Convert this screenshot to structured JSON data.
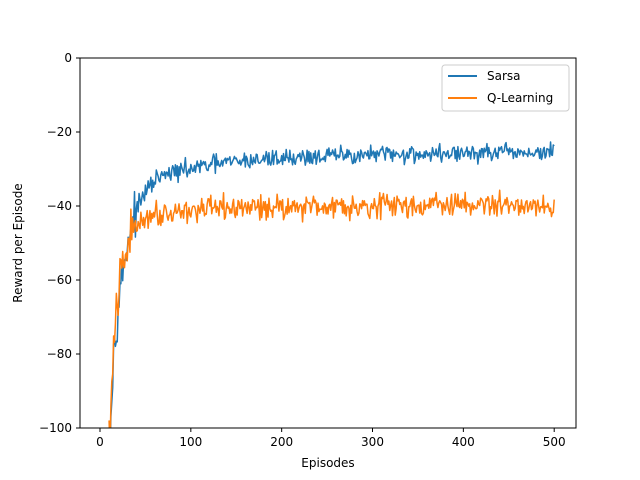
{
  "chart_data": {
    "type": "line",
    "xlabel": "Episodes",
    "ylabel": "Reward per Episode",
    "xlim": [
      -22,
      524
    ],
    "ylim": [
      -100,
      0
    ],
    "xticks": [
      0,
      100,
      200,
      300,
      400,
      500
    ],
    "yticks": [
      -100,
      -80,
      -60,
      -40,
      -20,
      0
    ],
    "xtick_labels": [
      "0",
      "100",
      "200",
      "300",
      "400",
      "500"
    ],
    "ytick_labels": [
      "−100",
      "−80",
      "−60",
      "−40",
      "−20",
      "0"
    ],
    "legend_position": "top-right",
    "grid": false,
    "series": [
      {
        "name": "Sarsa",
        "color": "#1f77b4",
        "x": [
          10,
          12,
          14,
          16,
          18,
          20,
          22,
          25,
          28,
          30,
          33,
          36,
          40,
          45,
          50,
          55,
          60,
          70,
          80,
          90,
          100,
          110,
          120,
          130,
          140,
          150,
          160,
          170,
          180,
          190,
          200,
          210,
          220,
          230,
          240,
          250,
          260,
          270,
          280,
          290,
          300,
          310,
          320,
          330,
          340,
          350,
          360,
          370,
          380,
          390,
          400,
          410,
          420,
          430,
          440,
          450,
          460,
          470,
          480,
          490,
          500
        ],
        "y": [
          -105,
          -97,
          -85,
          -76,
          -72,
          -66,
          -62,
          -58,
          -54,
          -50,
          -47,
          -44,
          -41,
          -39,
          -36,
          -35,
          -33,
          -32,
          -31,
          -30.5,
          -30,
          -29.5,
          -29,
          -28.5,
          -28.3,
          -28,
          -27.8,
          -27.6,
          -27.4,
          -27.2,
          -27,
          -26.9,
          -26.8,
          -26.7,
          -26.6,
          -26.5,
          -26.4,
          -26.3,
          -26.3,
          -26.2,
          -26.2,
          -26.1,
          -26.1,
          -26,
          -26,
          -26,
          -25.9,
          -25.9,
          -25.9,
          -25.8,
          -25.8,
          -25.8,
          -25.8,
          -25.7,
          -25.7,
          -25.7,
          -25.7,
          -25.6,
          -25.6,
          -25.6,
          -25.6
        ],
        "noise": 1.2
      },
      {
        "name": "Q-Learning",
        "color": "#ff7f0e",
        "x": [
          10,
          12,
          14,
          16,
          18,
          20,
          22,
          25,
          28,
          30,
          33,
          36,
          40,
          45,
          50,
          55,
          60,
          70,
          80,
          90,
          100,
          110,
          120,
          130,
          140,
          150,
          160,
          170,
          180,
          190,
          200,
          210,
          220,
          230,
          240,
          250,
          260,
          270,
          280,
          290,
          300,
          310,
          320,
          330,
          340,
          350,
          360,
          370,
          380,
          390,
          400,
          410,
          420,
          430,
          440,
          450,
          460,
          470,
          480,
          490,
          500
        ],
        "y": [
          -103,
          -95,
          -84,
          -76,
          -70,
          -64,
          -60,
          -57,
          -54,
          -51,
          -49,
          -47,
          -45.5,
          -44,
          -43,
          -42.5,
          -42,
          -41.8,
          -41.5,
          -41.3,
          -41.1,
          -41,
          -40.9,
          -40.8,
          -40.7,
          -40.6,
          -40.5,
          -40.4,
          -40.3,
          -40.2,
          -40.2,
          -40.1,
          -40.1,
          -40,
          -40,
          -40,
          -39.9,
          -39.9,
          -39.9,
          -39.9,
          -39.8,
          -39.8,
          -39.8,
          -39.8,
          -39.8,
          -39.8,
          -39.7,
          -39.7,
          -39.7,
          -39.7,
          -39.7,
          -39.7,
          -39.7,
          -39.7,
          -39.7,
          -39.7,
          -39.7,
          -39.7,
          -39.7,
          -39.7,
          -39.7
        ],
        "noise": 1.6
      }
    ]
  }
}
